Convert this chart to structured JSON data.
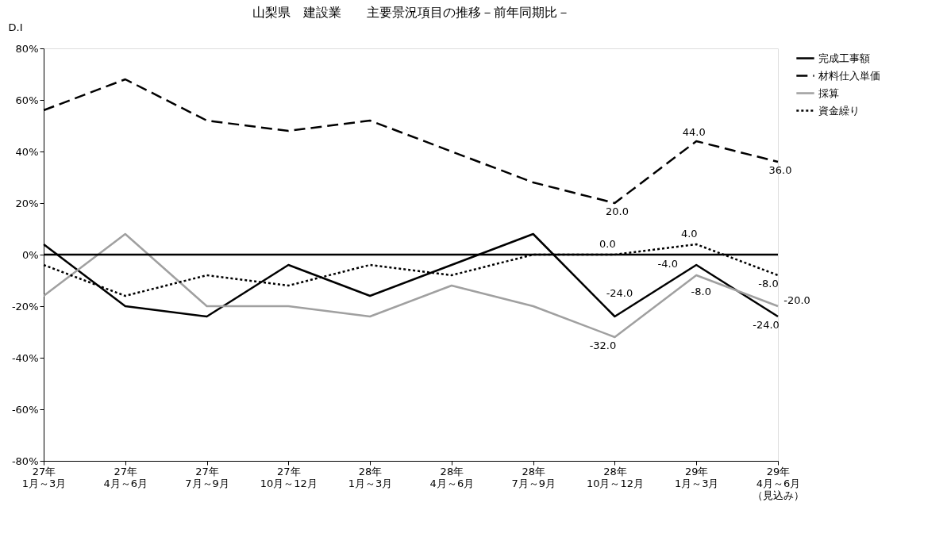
{
  "chart_data": {
    "type": "line",
    "title": "山梨県　建設業　　主要景況項目の推移－前年同期比－",
    "ylabel": "D.I",
    "categories": [
      "27年\n1月～3月",
      "27年\n4月～6月",
      "27年\n7月～9月",
      "27年\n10月～12月",
      "28年\n1月～3月",
      "28年\n4月～6月",
      "28年\n7月～9月",
      "28年\n10月～12月",
      "29年\n1月～3月",
      "29年\n4月～6月（見込み）"
    ],
    "series": [
      {
        "name": "完成工事額",
        "color": "#000000",
        "line_style": "solid",
        "values": [
          4,
          -20,
          -24,
          -4,
          -16,
          -4,
          8,
          -24,
          -4,
          -24
        ],
        "value_labels": [
          null,
          null,
          null,
          null,
          null,
          null,
          null,
          "-24.0",
          "-4.0",
          "-24.0"
        ]
      },
      {
        "name": "材料仕入単価",
        "color": "#000000",
        "line_style": "dashed",
        "values": [
          56,
          68,
          52,
          48,
          52,
          40,
          28,
          20,
          44,
          36
        ],
        "value_labels": [
          null,
          null,
          null,
          null,
          null,
          null,
          null,
          "20.0",
          "44.0",
          "36.0"
        ]
      },
      {
        "name": "採算",
        "color": "#a0a0a0",
        "line_style": "solid",
        "values": [
          -16,
          8,
          -20,
          -20,
          -24,
          -12,
          -20,
          -32,
          -8,
          -20
        ],
        "value_labels": [
          null,
          null,
          null,
          null,
          null,
          null,
          null,
          "-32.0",
          "-8.0",
          "-20.0"
        ]
      },
      {
        "name": "資金繰り",
        "color": "#000000",
        "line_style": "dotted",
        "values": [
          -4,
          -16,
          -8,
          -12,
          -4,
          -8,
          0,
          0,
          4,
          -8
        ],
        "value_labels": [
          null,
          null,
          null,
          null,
          null,
          null,
          null,
          "0.0",
          "4.0",
          "-8.0"
        ]
      }
    ],
    "ylim": [
      -80,
      80
    ],
    "yticks": [
      {
        "value": -80,
        "label": "-80%"
      },
      {
        "value": -60,
        "label": "-60%"
      },
      {
        "value": -40,
        "label": "-40%"
      },
      {
        "value": -20,
        "label": "-20%"
      },
      {
        "value": 0,
        "label": "0%"
      },
      {
        "value": 20,
        "label": "20%"
      },
      {
        "value": 40,
        "label": "40%"
      },
      {
        "value": 60,
        "label": "60%"
      },
      {
        "value": 80,
        "label": "80%"
      }
    ],
    "ref_lines": [
      {
        "axis": "y",
        "value": 0,
        "color": "#000000",
        "line_style": "solid"
      }
    ],
    "grid": false,
    "legend": "top right",
    "marker": "none"
  }
}
